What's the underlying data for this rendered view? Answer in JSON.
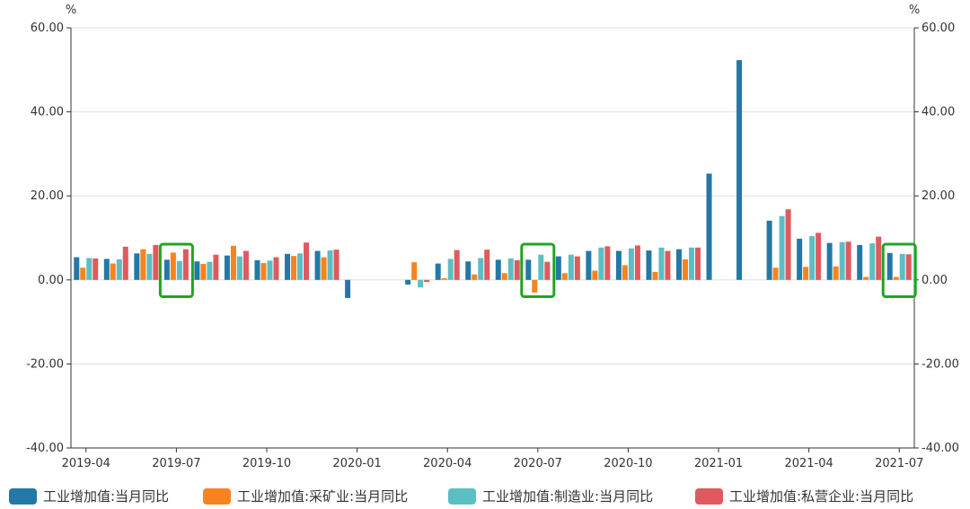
{
  "chart_data": {
    "type": "bar",
    "left_unit": "%",
    "right_unit": "%",
    "ylim": [
      -40,
      60
    ],
    "y_ticks": [
      "60.00",
      "40.00",
      "20.00",
      "0.00",
      "-20.00",
      "-40.00"
    ],
    "x_tick_labels": [
      "2019-04",
      "2019-07",
      "2019-10",
      "2020-01",
      "2020-04",
      "2020-07",
      "2020-10",
      "2021-01",
      "2021-04",
      "2021-07"
    ],
    "categories": [
      "2019-04",
      "2019-05",
      "2019-06",
      "2019-07",
      "2019-08",
      "2019-09",
      "2019-10",
      "2019-11",
      "2019-12",
      "2020-01",
      "2020-02",
      "2020-03",
      "2020-04",
      "2020-05",
      "2020-06",
      "2020-07",
      "2020-08",
      "2020-09",
      "2020-10",
      "2020-11",
      "2020-12",
      "2021-01",
      "2021-02",
      "2021-03",
      "2021-04",
      "2021-05",
      "2021-06",
      "2021-07"
    ],
    "grid": true,
    "legend_position": "bottom",
    "series": [
      {
        "name": "工业增加值:当月同比",
        "color": "#2378a6",
        "values": [
          5.4,
          5.0,
          6.3,
          4.8,
          4.4,
          5.8,
          4.7,
          6.2,
          6.9,
          -4.3,
          null,
          -1.1,
          3.9,
          4.4,
          4.8,
          4.8,
          5.6,
          6.9,
          6.9,
          7.0,
          7.3,
          25.3,
          52.3,
          14.1,
          9.8,
          8.8,
          8.3,
          6.4
        ]
      },
      {
        "name": "工业增加值:采矿业:当月同比",
        "color": "#f5841f",
        "values": [
          2.9,
          3.9,
          7.3,
          6.5,
          3.8,
          8.1,
          4.0,
          5.7,
          5.4,
          null,
          null,
          4.2,
          0.4,
          1.3,
          1.6,
          -3.0,
          1.6,
          2.2,
          3.5,
          1.9,
          4.9,
          null,
          null,
          2.9,
          3.1,
          3.2,
          0.7,
          0.7
        ]
      },
      {
        "name": "工业增加值:制造业:当月同比",
        "color": "#5bbec2",
        "values": [
          5.2,
          4.9,
          6.2,
          4.5,
          4.3,
          5.6,
          4.6,
          6.3,
          7.0,
          null,
          null,
          -1.8,
          5.0,
          5.2,
          5.1,
          6.0,
          6.0,
          7.7,
          7.5,
          7.7,
          7.7,
          null,
          null,
          15.2,
          10.4,
          9.0,
          8.7,
          6.2
        ]
      },
      {
        "name": "工业增加值:私营企业:当月同比",
        "color": "#df5a5e",
        "values": [
          5.1,
          7.9,
          8.3,
          7.3,
          6.0,
          6.9,
          5.4,
          8.9,
          7.2,
          null,
          null,
          -0.5,
          7.1,
          7.2,
          4.7,
          4.3,
          5.6,
          8.0,
          8.2,
          6.9,
          7.7,
          null,
          null,
          16.8,
          11.2,
          9.1,
          10.3,
          6.1
        ]
      }
    ],
    "highlights": [
      "2019-07",
      "2020-07",
      "2021-07"
    ],
    "highlight_color": "#1fa51f"
  }
}
